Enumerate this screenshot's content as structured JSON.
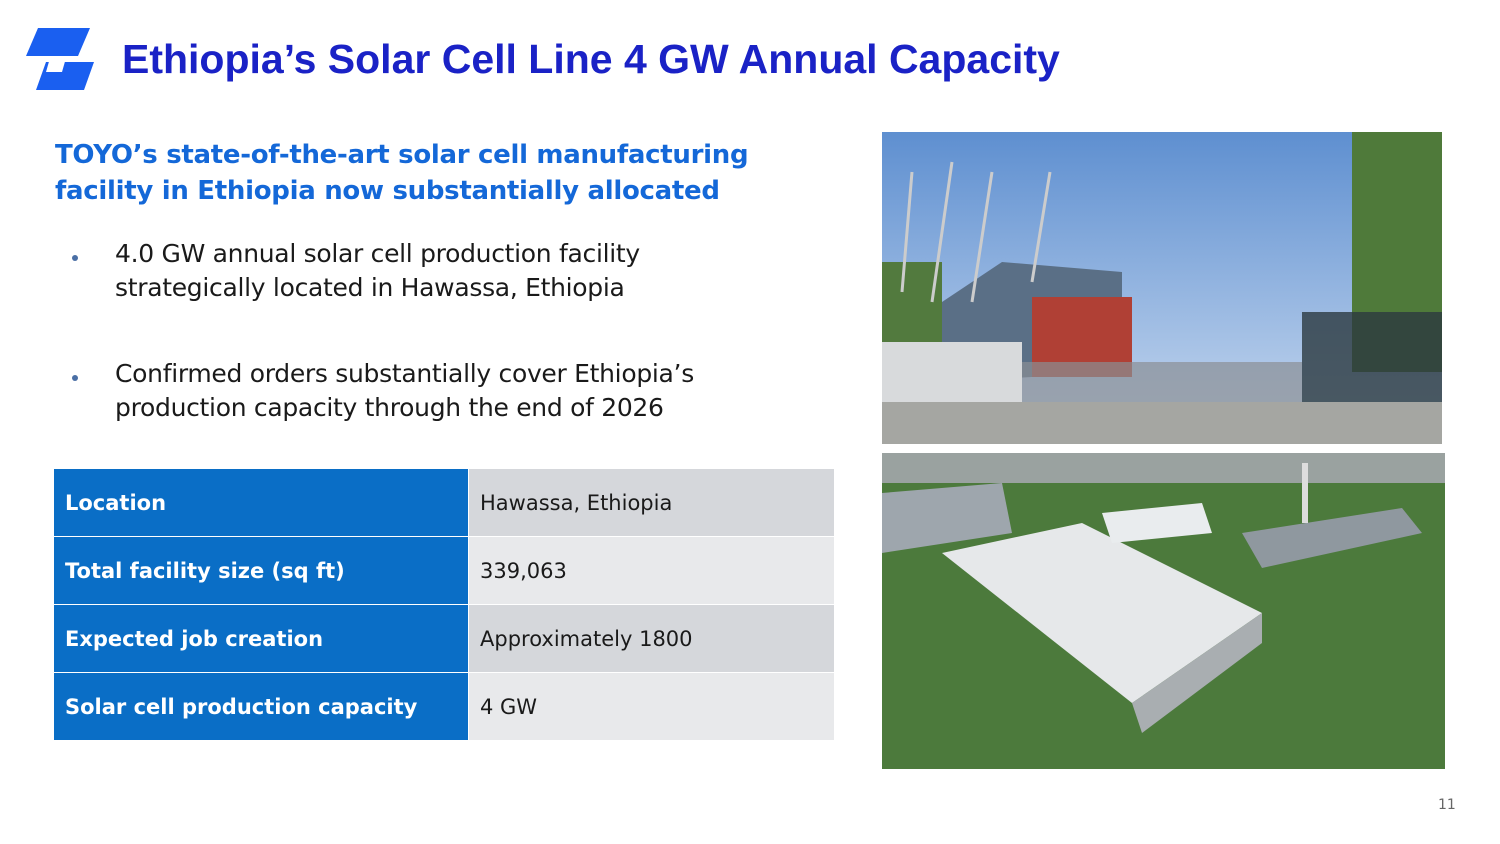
{
  "header": {
    "title": "Ethiopia’s Solar Cell Line 4 GW Annual Capacity"
  },
  "subtitle": [
    "TOYO’s state-of-the-art solar cell manufacturing",
    "facility in Ethiopia now substantially allocated"
  ],
  "bullets": [
    [
      "4.0 GW annual solar cell production facility",
      "strategically located in Hawassa, Ethiopia"
    ],
    [
      "Confirmed orders substantially cover Ethiopia’s",
      "production capacity through the end of 2026"
    ]
  ],
  "table": {
    "rows": [
      [
        "Location",
        "Hawassa, Ethiopia"
      ],
      [
        "Total facility size (sq ft)",
        "339,063"
      ],
      [
        "Expected job creation",
        "Approximately 1800"
      ],
      [
        "Solar cell production capacity",
        "4 GW"
      ]
    ]
  },
  "page_number": "11"
}
